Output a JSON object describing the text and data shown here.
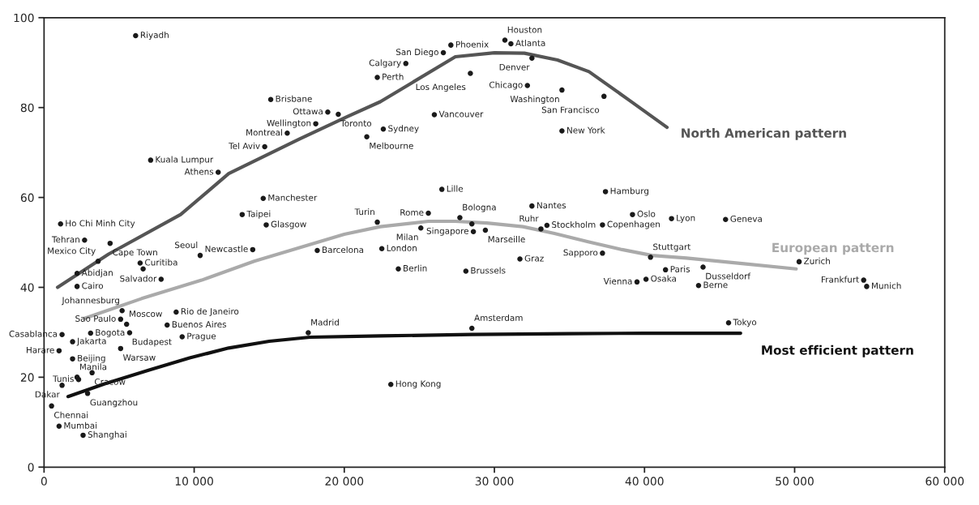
{
  "chart_data": {
    "type": "scatter",
    "xlim": [
      0,
      60000
    ],
    "ylim": [
      0,
      100
    ],
    "xticks": [
      {
        "value": 0,
        "label": "0"
      },
      {
        "value": 10000,
        "label": "10 000"
      },
      {
        "value": 20000,
        "label": "20 000"
      },
      {
        "value": 30000,
        "label": "30 000"
      },
      {
        "value": 40000,
        "label": "40 000"
      },
      {
        "value": 50000,
        "label": "50 000"
      },
      {
        "value": 60000,
        "label": "60 000"
      }
    ],
    "yticks": [
      0,
      20,
      40,
      60,
      80,
      100
    ],
    "grid": false,
    "series": [
      {
        "marker": "circle",
        "color": "#1a1a1a",
        "x": [
          6100,
          15100,
          18900,
          19600,
          18100,
          16200,
          14700,
          7100,
          11600,
          14600,
          13200,
          14800,
          21500,
          1100,
          27100,
          26600,
          30700,
          31100,
          32500,
          24100,
          22200,
          28400,
          32200,
          34500,
          37300,
          26000,
          22600,
          34500,
          2700,
          4400,
          3600,
          6400,
          6600,
          10400,
          13900,
          18200,
          2200,
          2200,
          7800,
          5200,
          5100,
          5500,
          8800,
          8200,
          1200,
          3100,
          5700,
          9200,
          1900,
          5100,
          1000,
          1900,
          3200,
          2200,
          2300,
          1200,
          2900,
          500,
          1000,
          2600,
          17600,
          26500,
          37400,
          32500,
          25600,
          27700,
          22200,
          25100,
          28500,
          29400,
          28600,
          33500,
          33100,
          37200,
          39200,
          41800,
          22500,
          23600,
          28100,
          31700,
          37200,
          40400,
          39500,
          40100,
          41400,
          43900,
          43600,
          28500,
          23100,
          45400,
          50300,
          54600,
          54800,
          45600
        ],
        "values": [
          96.0,
          81.8,
          79.0,
          78.5,
          76.4,
          74.3,
          71.3,
          68.3,
          65.6,
          59.8,
          56.2,
          53.9,
          73.5,
          54.1,
          93.9,
          92.2,
          95.0,
          94.2,
          91.0,
          89.8,
          86.7,
          87.6,
          84.9,
          83.9,
          82.5,
          78.4,
          75.2,
          74.8,
          50.5,
          49.8,
          45.8,
          45.4,
          44.1,
          47.1,
          48.4,
          48.2,
          43.1,
          40.2,
          41.8,
          34.8,
          32.9,
          31.8,
          34.5,
          31.6,
          29.5,
          29.8,
          29.9,
          29.0,
          27.9,
          26.4,
          25.9,
          24.1,
          21.0,
          20.0,
          19.5,
          18.2,
          16.4,
          13.6,
          9.1,
          7.1,
          29.9,
          61.8,
          61.3,
          58.1,
          56.5,
          55.5,
          54.5,
          53.2,
          54.1,
          52.7,
          52.4,
          53.8,
          53.0,
          53.9,
          56.2,
          55.3,
          48.6,
          44.1,
          43.6,
          46.3,
          47.6,
          46.7,
          41.2,
          41.8,
          43.9,
          44.5,
          40.4,
          30.9,
          18.4,
          55.1,
          45.7,
          41.6,
          40.2,
          32.1
        ],
        "value_labels": [
          "Riyadh",
          "Brisbane",
          "Ottawa",
          "Toronto",
          "Wellington",
          "Montreal",
          "Tel Aviv",
          "Kuala Lumpur",
          "Athens",
          "Manchester",
          "Taipei",
          "Glasgow",
          "Melbourne",
          "Ho Chi Minh City",
          "Phoenix",
          "San Diego",
          "Houston",
          "Atlanta",
          "Denver",
          "Calgary",
          "Perth",
          "Los Angeles",
          "Chicago",
          "Washington",
          "San Francisco",
          "Vancouver",
          "Sydney",
          "New York",
          "Tehran",
          "Cape Town",
          "Mexico City",
          "Curitiba",
          null,
          "Seoul",
          "Newcastle",
          "Barcelona",
          "Abidjan",
          "Cairo",
          "Salvador",
          "Johannesburg",
          "Sao Paulo",
          "Moscow",
          "Rio de Janeiro",
          "Buenos Aires",
          "Casablanca",
          "Bogota",
          "Budapest",
          "Prague",
          "Jakarta",
          "Warsaw",
          "Harare",
          "Beijing",
          "Cracow",
          "Manila",
          "Tunis",
          "Dakar",
          "Guangzhou",
          "Chennai",
          "Mumbai",
          "Shanghai",
          "Madrid",
          "Lille",
          "Hamburg",
          "Nantes",
          "Rome",
          "Bologna",
          "Turin",
          "Milan",
          null,
          "Marseille",
          "Singapore",
          "Stockholm",
          "Ruhr",
          "Copenhagen",
          "Oslo",
          "Lyon",
          "London",
          "Berlin",
          "Brussels",
          "Graz",
          "Sapporo",
          "Stuttgart",
          "Vienna",
          "Osaka",
          "Paris",
          "Dusseldorf",
          "Berne",
          "Amsterdam",
          "Hong Kong",
          "Geneva",
          "Zurich",
          "Frankfurt",
          "Munich",
          "Tokyo"
        ]
      },
      {
        "type": "line",
        "name": "North American pattern",
        "color": "#555555",
        "x": [
          900,
          4300,
          9100,
          12300,
          17000,
          20200,
          22400,
          24500,
          27400,
          30000,
          32000,
          34200,
          36300,
          39000,
          41500
        ],
        "values": [
          40.0,
          47.4,
          56.2,
          65.3,
          73.0,
          78.0,
          81.3,
          85.5,
          91.3,
          92.2,
          92.1,
          90.6,
          88.0,
          81.6,
          75.6
        ]
      },
      {
        "type": "line",
        "name": "European pattern",
        "color": "#aaaaaa",
        "x": [
          2700,
          6500,
          10500,
          14000,
          17700,
          20000,
          22400,
          25600,
          27400,
          29500,
          31900,
          34000,
          36300,
          38500,
          40500,
          42800,
          46500,
          50100
        ],
        "values": [
          33.1,
          37.5,
          41.6,
          45.8,
          49.5,
          51.8,
          53.5,
          54.7,
          54.7,
          54.3,
          53.5,
          52.0,
          50.1,
          48.4,
          47.1,
          46.5,
          45.3,
          44.1
        ]
      },
      {
        "type": "line",
        "name": "Most efficient pattern",
        "color": "#111111",
        "x": [
          1600,
          4000,
          7000,
          9700,
          12300,
          15000,
          17700,
          22400,
          28500,
          35000,
          40000,
          46400
        ],
        "values": [
          15.7,
          18.5,
          21.6,
          24.3,
          26.5,
          28.0,
          28.9,
          29.2,
          29.5,
          29.7,
          29.8,
          29.8
        ]
      }
    ]
  }
}
